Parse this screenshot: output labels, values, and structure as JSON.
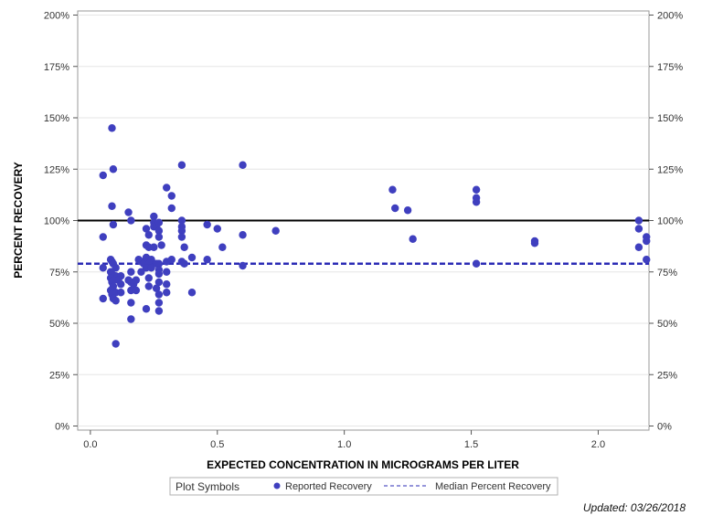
{
  "chart_data": {
    "type": "scatter",
    "title": "",
    "xlabel": "EXPECTED CONCENTRATION IN MICROGRAMS PER LITER",
    "ylabel": "PERCENT RECOVERY",
    "xlim": [
      -0.05,
      2.2
    ],
    "ylim": [
      -2,
      202
    ],
    "x_ticks": [
      0.0,
      0.5,
      1.0,
      1.5,
      2.0
    ],
    "x_tick_labels": [
      "0.0",
      "0.5",
      "1.0",
      "1.5",
      "2.0"
    ],
    "y_ticks": [
      0,
      25,
      50,
      75,
      100,
      125,
      150,
      175,
      200
    ],
    "y_tick_labels": [
      "0%",
      "25%",
      "50%",
      "75%",
      "100%",
      "125%",
      "150%",
      "175%",
      "200%"
    ],
    "reference_line": {
      "value": 100
    },
    "median_line": {
      "name": "Median Percent Recovery",
      "value": 79
    },
    "series": [
      {
        "name": "Reported Recovery",
        "color": "#3f3fbf",
        "points": [
          [
            0.05,
            122
          ],
          [
            0.05,
            92
          ],
          [
            0.05,
            77
          ],
          [
            0.05,
            62
          ],
          [
            0.085,
            145
          ],
          [
            0.09,
            125
          ],
          [
            0.085,
            107
          ],
          [
            0.09,
            98
          ],
          [
            0.08,
            81
          ],
          [
            0.085,
            80
          ],
          [
            0.09,
            79
          ],
          [
            0.1,
            77
          ],
          [
            0.08,
            75
          ],
          [
            0.085,
            74
          ],
          [
            0.1,
            73
          ],
          [
            0.12,
            73
          ],
          [
            0.08,
            72
          ],
          [
            0.09,
            71
          ],
          [
            0.11,
            71
          ],
          [
            0.085,
            70
          ],
          [
            0.12,
            69
          ],
          [
            0.09,
            68
          ],
          [
            0.08,
            66
          ],
          [
            0.1,
            65
          ],
          [
            0.12,
            65
          ],
          [
            0.085,
            64
          ],
          [
            0.09,
            62
          ],
          [
            0.1,
            61
          ],
          [
            0.1,
            40
          ],
          [
            0.15,
            104
          ],
          [
            0.16,
            100
          ],
          [
            0.16,
            75
          ],
          [
            0.15,
            71
          ],
          [
            0.16,
            70
          ],
          [
            0.17,
            69
          ],
          [
            0.16,
            66
          ],
          [
            0.18,
            66
          ],
          [
            0.16,
            60
          ],
          [
            0.16,
            52
          ],
          [
            0.19,
            81
          ],
          [
            0.2,
            80
          ],
          [
            0.21,
            79
          ],
          [
            0.2,
            75
          ],
          [
            0.18,
            71
          ],
          [
            0.22,
            96
          ],
          [
            0.23,
            93
          ],
          [
            0.22,
            88
          ],
          [
            0.23,
            87
          ],
          [
            0.22,
            82
          ],
          [
            0.24,
            81
          ],
          [
            0.23,
            79
          ],
          [
            0.22,
            77
          ],
          [
            0.24,
            77
          ],
          [
            0.23,
            72
          ],
          [
            0.23,
            68
          ],
          [
            0.22,
            57
          ],
          [
            0.25,
            102
          ],
          [
            0.25,
            99
          ],
          [
            0.25,
            97
          ],
          [
            0.26,
            97
          ],
          [
            0.25,
            87
          ],
          [
            0.26,
            79
          ],
          [
            0.27,
            99
          ],
          [
            0.27,
            95
          ],
          [
            0.27,
            92
          ],
          [
            0.28,
            88
          ],
          [
            0.27,
            79
          ],
          [
            0.27,
            76
          ],
          [
            0.27,
            74
          ],
          [
            0.27,
            70
          ],
          [
            0.26,
            67
          ],
          [
            0.27,
            64
          ],
          [
            0.27,
            60
          ],
          [
            0.27,
            56
          ],
          [
            0.3,
            116
          ],
          [
            0.3,
            80
          ],
          [
            0.3,
            75
          ],
          [
            0.3,
            69
          ],
          [
            0.3,
            65
          ],
          [
            0.32,
            112
          ],
          [
            0.32,
            106
          ],
          [
            0.32,
            81
          ],
          [
            0.36,
            127
          ],
          [
            0.36,
            100
          ],
          [
            0.36,
            97
          ],
          [
            0.36,
            95
          ],
          [
            0.36,
            92
          ],
          [
            0.37,
            87
          ],
          [
            0.36,
            80
          ],
          [
            0.37,
            79
          ],
          [
            0.4,
            82
          ],
          [
            0.4,
            65
          ],
          [
            0.46,
            98
          ],
          [
            0.46,
            81
          ],
          [
            0.5,
            96
          ],
          [
            0.52,
            87
          ],
          [
            0.6,
            127
          ],
          [
            0.6,
            93
          ],
          [
            0.6,
            78
          ],
          [
            0.73,
            95
          ],
          [
            1.19,
            115
          ],
          [
            1.2,
            106
          ],
          [
            1.25,
            105
          ],
          [
            1.27,
            91
          ],
          [
            1.52,
            115
          ],
          [
            1.52,
            111
          ],
          [
            1.52,
            109
          ],
          [
            1.52,
            79
          ],
          [
            1.75,
            90
          ],
          [
            1.75,
            89
          ],
          [
            2.16,
            100
          ],
          [
            2.16,
            96
          ],
          [
            2.16,
            87
          ],
          [
            2.19,
            92
          ],
          [
            2.19,
            90
          ],
          [
            2.19,
            81
          ]
        ]
      }
    ],
    "legend": {
      "title": "Plot Symbols",
      "entries": [
        "Reported Recovery",
        "Median Percent Recovery"
      ],
      "position": "bottom"
    }
  },
  "footnote": "Updated: 03/26/2018"
}
